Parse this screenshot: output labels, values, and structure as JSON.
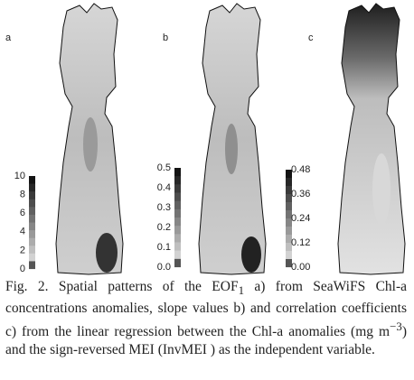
{
  "panels": [
    {
      "label": "a",
      "colorbar_ticks": [
        "0",
        "2",
        "4",
        "6",
        "8",
        "10"
      ]
    },
    {
      "label": "b",
      "colorbar_ticks": [
        "0.0",
        "0.1",
        "0.2",
        "0.3",
        "0.4",
        "0.5"
      ]
    },
    {
      "label": "c",
      "colorbar_ticks": [
        "0.00",
        "0.12",
        "0.24",
        "0.36",
        "0.48"
      ]
    }
  ],
  "caption": {
    "part1": "Fig. 2. Spatial patterns of the EOF",
    "sub": "1",
    "part2": " a) from SeaWiFS Chl-a concentrations anomalies, slope values b) and correlation coefficients c) from the linear regression between the Chl-a anomalies (mg m",
    "sup": "−3",
    "part3": ") and the sign-reversed MEI (InvMEI ) as the independent variable."
  }
}
